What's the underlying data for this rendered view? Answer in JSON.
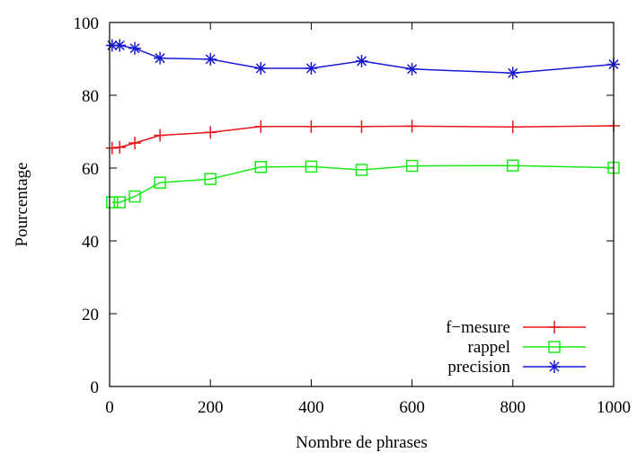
{
  "chart_data": {
    "type": "line",
    "title": "",
    "xlabel": "Nombre de phrases",
    "ylabel": "Pourcentage",
    "xlim": [
      0,
      1000
    ],
    "ylim": [
      0,
      100
    ],
    "x_ticks": [
      0,
      200,
      400,
      600,
      800,
      1000
    ],
    "y_ticks": [
      0,
      20,
      40,
      60,
      80,
      100
    ],
    "x_tick_labels": [
      "0",
      "200",
      "400",
      "600",
      "800",
      "1000"
    ],
    "y_tick_labels": [
      "0",
      "20",
      "40",
      "60",
      "80",
      "100"
    ],
    "grid": false,
    "legend_position": "bottom-right",
    "x": [
      5,
      20,
      50,
      100,
      200,
      300,
      400,
      500,
      600,
      800,
      1000
    ],
    "series": [
      {
        "name": "f−mesure",
        "color": "#e8151a",
        "marker": "plus",
        "values": [
          65.5,
          65.7,
          66.9,
          69.0,
          69.8,
          71.4,
          71.4,
          71.4,
          71.5,
          71.3,
          71.6
        ]
      },
      {
        "name": "rappel",
        "color": "#19e819",
        "marker": "square",
        "values": [
          50.6,
          50.6,
          52.2,
          56.0,
          57.0,
          60.3,
          60.4,
          59.5,
          60.6,
          60.7,
          60.1
        ]
      },
      {
        "name": "precision",
        "color": "#1919d2",
        "marker": "asterisk",
        "values": [
          93.7,
          93.7,
          92.9,
          90.2,
          89.9,
          87.4,
          87.4,
          89.4,
          87.2,
          86.1,
          88.5
        ]
      }
    ]
  }
}
